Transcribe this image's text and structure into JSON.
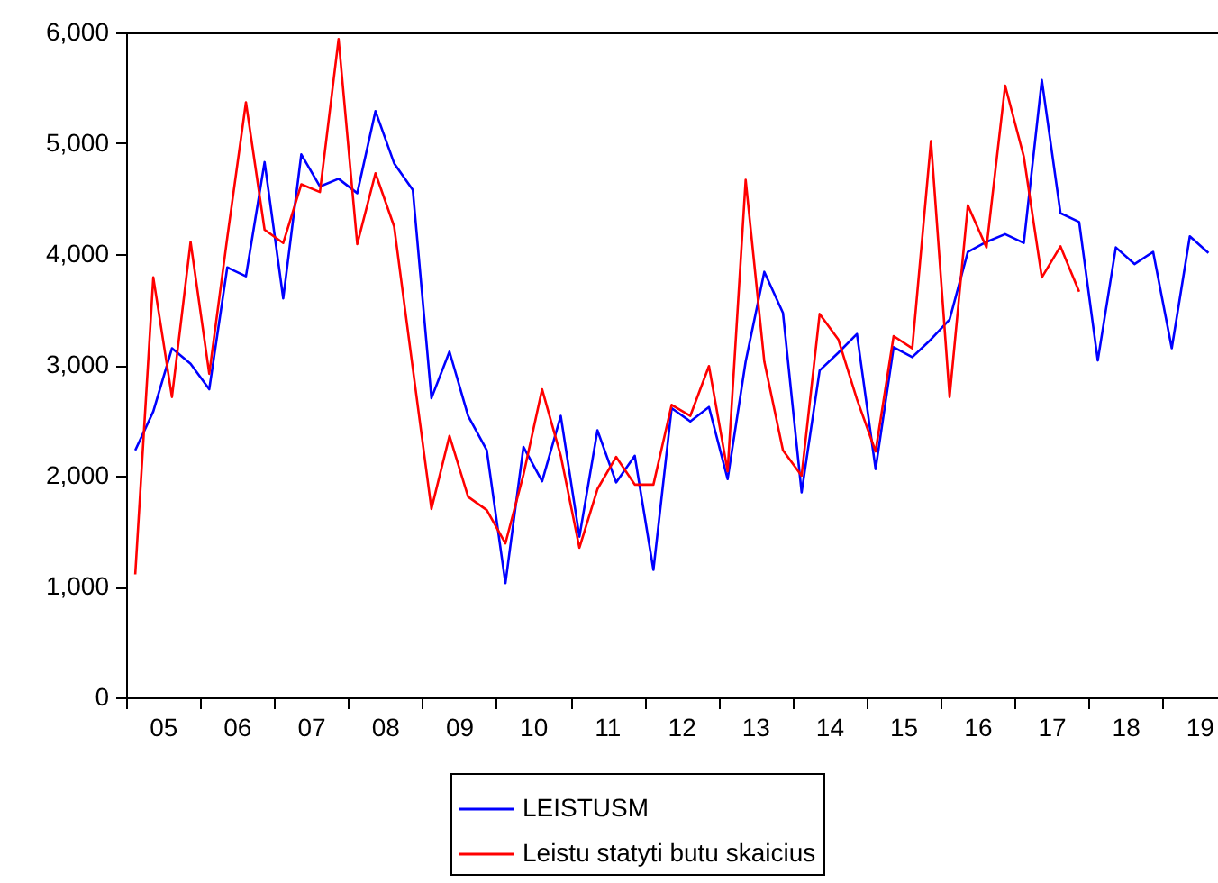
{
  "chart_data": {
    "type": "line",
    "x": [
      "2005-02-15",
      "2005-05-15",
      "2005-08-15",
      "2005-11-15",
      "2006-02-15",
      "2006-05-15",
      "2006-08-15",
      "2006-11-15",
      "2007-02-15",
      "2007-05-15",
      "2007-08-15",
      "2007-11-15",
      "2008-02-15",
      "2008-05-15",
      "2008-08-15",
      "2008-11-15",
      "2009-02-15",
      "2009-05-15",
      "2009-08-15",
      "2009-11-15",
      "2010-02-15",
      "2010-05-15",
      "2010-08-15",
      "2010-11-15",
      "2011-02-15",
      "2011-05-15",
      "2011-08-15",
      "2011-11-15",
      "2012-02-15",
      "2012-05-15",
      "2012-08-15",
      "2012-11-15",
      "2013-02-15",
      "2013-05-15",
      "2013-08-15",
      "2013-11-15",
      "2014-02-15",
      "2014-05-15",
      "2014-08-15",
      "2014-11-15",
      "2015-02-15",
      "2015-05-15",
      "2015-08-15",
      "2015-11-15",
      "2016-02-15",
      "2016-05-15",
      "2016-08-15",
      "2016-11-15",
      "2017-02-15",
      "2017-05-15",
      "2017-08-15",
      "2017-11-15",
      "2018-02-15",
      "2018-05-15",
      "2018-08-15",
      "2018-11-15",
      "2019-02-15",
      "2019-05-15",
      "2019-08-15"
    ],
    "series": [
      {
        "name": "LEISTUSM",
        "color": "#0000ff",
        "values": [
          2230,
          2580,
          3150,
          3010,
          2780,
          3880,
          3800,
          4830,
          3600,
          4900,
          4610,
          4680,
          4550,
          5290,
          4820,
          4580,
          2700,
          3120,
          2540,
          2230,
          1030,
          2260,
          1950,
          2540,
          1450,
          2410,
          1940,
          2180,
          1150,
          2610,
          2490,
          2620,
          1970,
          3030,
          3840,
          3470,
          1850,
          2950,
          3110,
          3280,
          2060,
          3160,
          3070,
          3230,
          3410,
          4020,
          4110,
          4180,
          4100,
          5570,
          4370,
          4290,
          3040,
          4060,
          3910,
          4020,
          3150,
          4160,
          4010
        ]
      },
      {
        "name": "Leistu statyti butu skaicius",
        "color": "#ff0000",
        "values": [
          1110,
          3790,
          2710,
          4110,
          2920,
          4150,
          5370,
          4220,
          4100,
          4630,
          4560,
          5940,
          4090,
          4730,
          4250,
          2970,
          1700,
          2360,
          1810,
          1690,
          1390,
          2010,
          2780,
          2180,
          1350,
          1880,
          2170,
          1920,
          1920,
          2640,
          2540,
          2990,
          2040,
          4670,
          3030,
          2230,
          2000,
          3460,
          3230,
          2690,
          2220,
          3260,
          3150,
          5020,
          2710,
          4440,
          4060,
          5520,
          4880,
          3790,
          4070,
          3660,
          null,
          null,
          null,
          null,
          null,
          null,
          null
        ]
      }
    ],
    "xlim": [
      "2005-01-01",
      "2019-10-01"
    ],
    "xticks": [
      {
        "value": "2005-01-01",
        "label": null
      },
      {
        "value": "2005-07-01",
        "label": "05"
      },
      {
        "value": "2006-01-01",
        "label": null
      },
      {
        "value": "2006-07-01",
        "label": "06"
      },
      {
        "value": "2007-01-01",
        "label": null
      },
      {
        "value": "2007-07-01",
        "label": "07"
      },
      {
        "value": "2008-01-01",
        "label": null
      },
      {
        "value": "2008-07-01",
        "label": "08"
      },
      {
        "value": "2009-01-01",
        "label": null
      },
      {
        "value": "2009-07-01",
        "label": "09"
      },
      {
        "value": "2010-01-01",
        "label": null
      },
      {
        "value": "2010-07-01",
        "label": "10"
      },
      {
        "value": "2011-01-01",
        "label": null
      },
      {
        "value": "2011-07-01",
        "label": "11"
      },
      {
        "value": "2012-01-01",
        "label": null
      },
      {
        "value": "2012-07-01",
        "label": "12"
      },
      {
        "value": "2013-01-01",
        "label": null
      },
      {
        "value": "2013-07-01",
        "label": "13"
      },
      {
        "value": "2014-01-01",
        "label": null
      },
      {
        "value": "2014-07-01",
        "label": "14"
      },
      {
        "value": "2015-01-01",
        "label": null
      },
      {
        "value": "2015-07-01",
        "label": "15"
      },
      {
        "value": "2016-01-01",
        "label": null
      },
      {
        "value": "2016-07-01",
        "label": "16"
      },
      {
        "value": "2017-01-01",
        "label": null
      },
      {
        "value": "2017-07-01",
        "label": "17"
      },
      {
        "value": "2018-01-01",
        "label": null
      },
      {
        "value": "2018-07-01",
        "label": "18"
      },
      {
        "value": "2019-01-01",
        "label": null
      },
      {
        "value": "2019-07-01",
        "label": "19"
      }
    ],
    "ylim": [
      0,
      6000
    ],
    "yticks": [
      {
        "value": 0,
        "label": "0"
      },
      {
        "value": 1000,
        "label": "1,000"
      },
      {
        "value": 2000,
        "label": "2,000"
      },
      {
        "value": 3000,
        "label": "3,000"
      },
      {
        "value": 4000,
        "label": "4,000"
      },
      {
        "value": 5000,
        "label": "5,000"
      },
      {
        "value": 6000,
        "label": "6,000"
      }
    ],
    "grid": false,
    "legend": "bottom",
    "line_style": "solid"
  }
}
